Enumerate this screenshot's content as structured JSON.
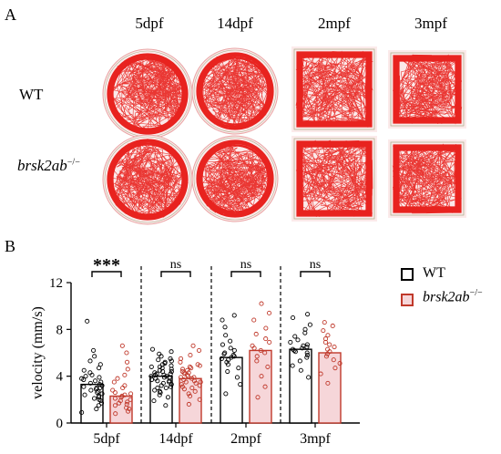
{
  "panel_a": {
    "letter": "A",
    "columns": [
      "5dpf",
      "14dpf",
      "2mpf",
      "3mpf"
    ],
    "rows": [
      {
        "label": "WT",
        "superscript": ""
      },
      {
        "label": "brsk2ab",
        "superscript": "−/−"
      }
    ],
    "track_color": "#e8231f",
    "arena_shapes": [
      "circle",
      "circle",
      "square",
      "square"
    ]
  },
  "panel_b": {
    "letter": "B",
    "legend": [
      {
        "label": "WT",
        "superscript": "",
        "edge": "#000000",
        "fill": "#ffffff"
      },
      {
        "label": "brsk2ab",
        "superscript": "−/−",
        "edge": "#c0392b",
        "fill": "#f6d6d9"
      }
    ]
  },
  "chart_data": {
    "type": "bar",
    "ylabel": "velocity (mm/s)",
    "ylim": [
      0,
      12
    ],
    "yticks": [
      0,
      4,
      8,
      12
    ],
    "categories": [
      "5dpf",
      "14dpf",
      "2mpf",
      "3mpf"
    ],
    "significance": [
      "***",
      "ns",
      "ns",
      "ns"
    ],
    "series": [
      {
        "name": "WT",
        "values": [
          3.3,
          4.0,
          5.6,
          6.3
        ]
      },
      {
        "name": "brsk2ab−/−",
        "values": [
          2.3,
          3.8,
          6.2,
          6.0
        ]
      }
    ],
    "points": {
      "WT": [
        [
          0.9,
          1.2,
          1.5,
          1.7,
          1.9,
          2.0,
          2.1,
          2.2,
          2.3,
          2.4,
          2.5,
          2.6,
          2.7,
          2.8,
          2.9,
          3.0,
          3.0,
          3.1,
          3.2,
          3.3,
          3.4,
          3.5,
          3.6,
          3.7,
          3.8,
          3.9,
          4.0,
          4.1,
          4.3,
          4.5,
          4.7,
          5.0,
          5.3,
          5.7,
          6.2,
          8.7
        ],
        [
          1.5,
          1.9,
          2.2,
          2.4,
          2.6,
          2.8,
          3.0,
          3.1,
          3.2,
          3.3,
          3.4,
          3.5,
          3.6,
          3.7,
          3.8,
          3.9,
          3.9,
          4.0,
          4.0,
          4.1,
          4.1,
          4.2,
          4.2,
          4.3,
          4.4,
          4.5,
          4.6,
          4.7,
          4.8,
          4.9,
          5.0,
          5.1,
          5.2,
          5.3,
          5.4,
          5.5,
          5.7,
          5.9,
          6.1,
          6.3,
          3.0,
          3.6,
          4.4,
          4.8,
          2.7
        ],
        [
          2.5,
          3.3,
          3.9,
          4.4,
          4.7,
          5.0,
          5.2,
          5.4,
          5.5,
          5.6,
          5.7,
          5.8,
          5.9,
          6.0,
          6.2,
          6.4,
          6.7,
          7.0,
          7.5,
          8.2,
          8.8,
          9.2
        ],
        [
          3.9,
          4.5,
          4.9,
          5.3,
          5.6,
          5.8,
          6.0,
          6.1,
          6.2,
          6.3,
          6.4,
          6.5,
          6.6,
          6.7,
          6.9,
          7.1,
          7.4,
          7.7,
          8.0,
          8.4,
          9.0,
          9.3
        ]
      ],
      "brsk2ab−/−": [
        [
          0.8,
          1.0,
          1.2,
          1.3,
          1.5,
          1.6,
          1.7,
          1.8,
          1.9,
          2.0,
          2.1,
          2.2,
          2.3,
          2.4,
          2.5,
          2.6,
          2.8,
          3.0,
          3.2,
          3.5,
          3.8,
          4.1,
          4.6,
          5.2,
          6.0,
          6.6
        ],
        [
          1.6,
          2.0,
          2.3,
          2.5,
          2.7,
          2.9,
          3.0,
          3.1,
          3.2,
          3.3,
          3.4,
          3.5,
          3.6,
          3.7,
          3.8,
          3.9,
          4.0,
          4.1,
          4.2,
          4.3,
          4.4,
          4.5,
          4.6,
          4.7,
          4.8,
          4.9,
          5.0,
          5.2,
          5.5,
          5.8,
          6.2,
          6.6,
          3.5,
          3.9,
          4.3
        ],
        [
          2.2,
          3.1,
          4.0,
          4.8,
          5.3,
          5.7,
          6.0,
          6.2,
          6.4,
          6.6,
          6.9,
          7.2,
          7.6,
          8.1,
          8.8,
          9.4,
          10.2
        ],
        [
          3.4,
          4.2,
          4.7,
          5.1,
          5.4,
          5.7,
          5.9,
          6.1,
          6.3,
          6.5,
          6.7,
          6.9,
          7.2,
          7.5,
          7.9,
          8.3,
          8.6
        ]
      ]
    }
  }
}
